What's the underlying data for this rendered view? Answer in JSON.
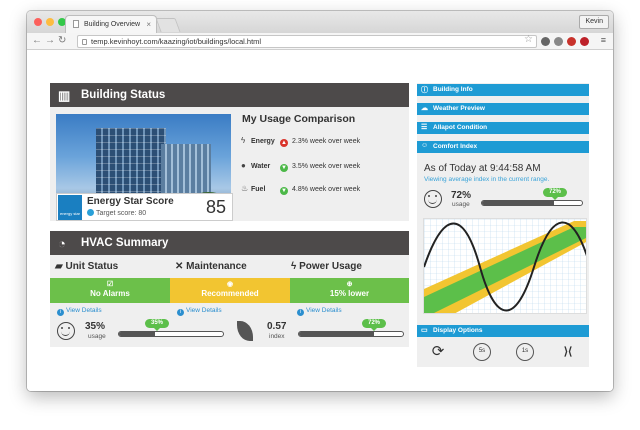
{
  "browser": {
    "tab_title": "Building Overview",
    "url": "temp.kevinhoyt.com/kaazing/iot/buildings/local.html",
    "user": "Kevin"
  },
  "building_status": {
    "title": "Building Status",
    "energy_star_title": "Energy Star Score",
    "target_label": "Target score: 80",
    "score": "85",
    "usage_title": "My Usage Comparison",
    "rows": [
      {
        "label": "Energy",
        "value": "2.3% week over week",
        "color": "#d9342b"
      },
      {
        "label": "Water",
        "value": "3.5% week over week",
        "color": "#4cb848"
      },
      {
        "label": "Fuel",
        "value": "4.8% week over week",
        "color": "#4cb848"
      }
    ]
  },
  "hvac": {
    "title": "HVAC Summary",
    "unit_status": {
      "title": "Unit Status",
      "bar_label": "No Alarms",
      "color": "#6cc04a"
    },
    "maintenance": {
      "title": "Maintenance",
      "bar_label": "Recommended",
      "color": "#f2c531"
    },
    "power_usage": {
      "title": "Power Usage",
      "bar_label": "15% lower",
      "color": "#6cc04a"
    },
    "view_details": "View Details",
    "usage_percent": "35%",
    "usage_label": "usage",
    "usage_pill": "35%",
    "usage_level": 0.35,
    "index_value": "0.57",
    "index_label": "index",
    "index_pill": "72%",
    "index_level": 0.72
  },
  "sidebar": {
    "building_info": "Building Info",
    "weather_preview": "Weather Preview",
    "allapot": "Allapot Condition",
    "comfort_index": "Comfort Index",
    "as_of": "As of Today at 9:44:58 AM",
    "viewing": "Viewing average index in the current range.",
    "comfort_percent": "72%",
    "comfort_label": "usage",
    "comfort_pill": "72%",
    "comfort_level": 0.72,
    "display_options": "Display Options",
    "controls": [
      {
        "name": "refresh",
        "label": "⟳"
      },
      {
        "name": "5s",
        "label": "5s"
      },
      {
        "name": "1s",
        "label": "1s"
      },
      {
        "name": "collapse",
        "label": "⟩⟨"
      }
    ]
  }
}
